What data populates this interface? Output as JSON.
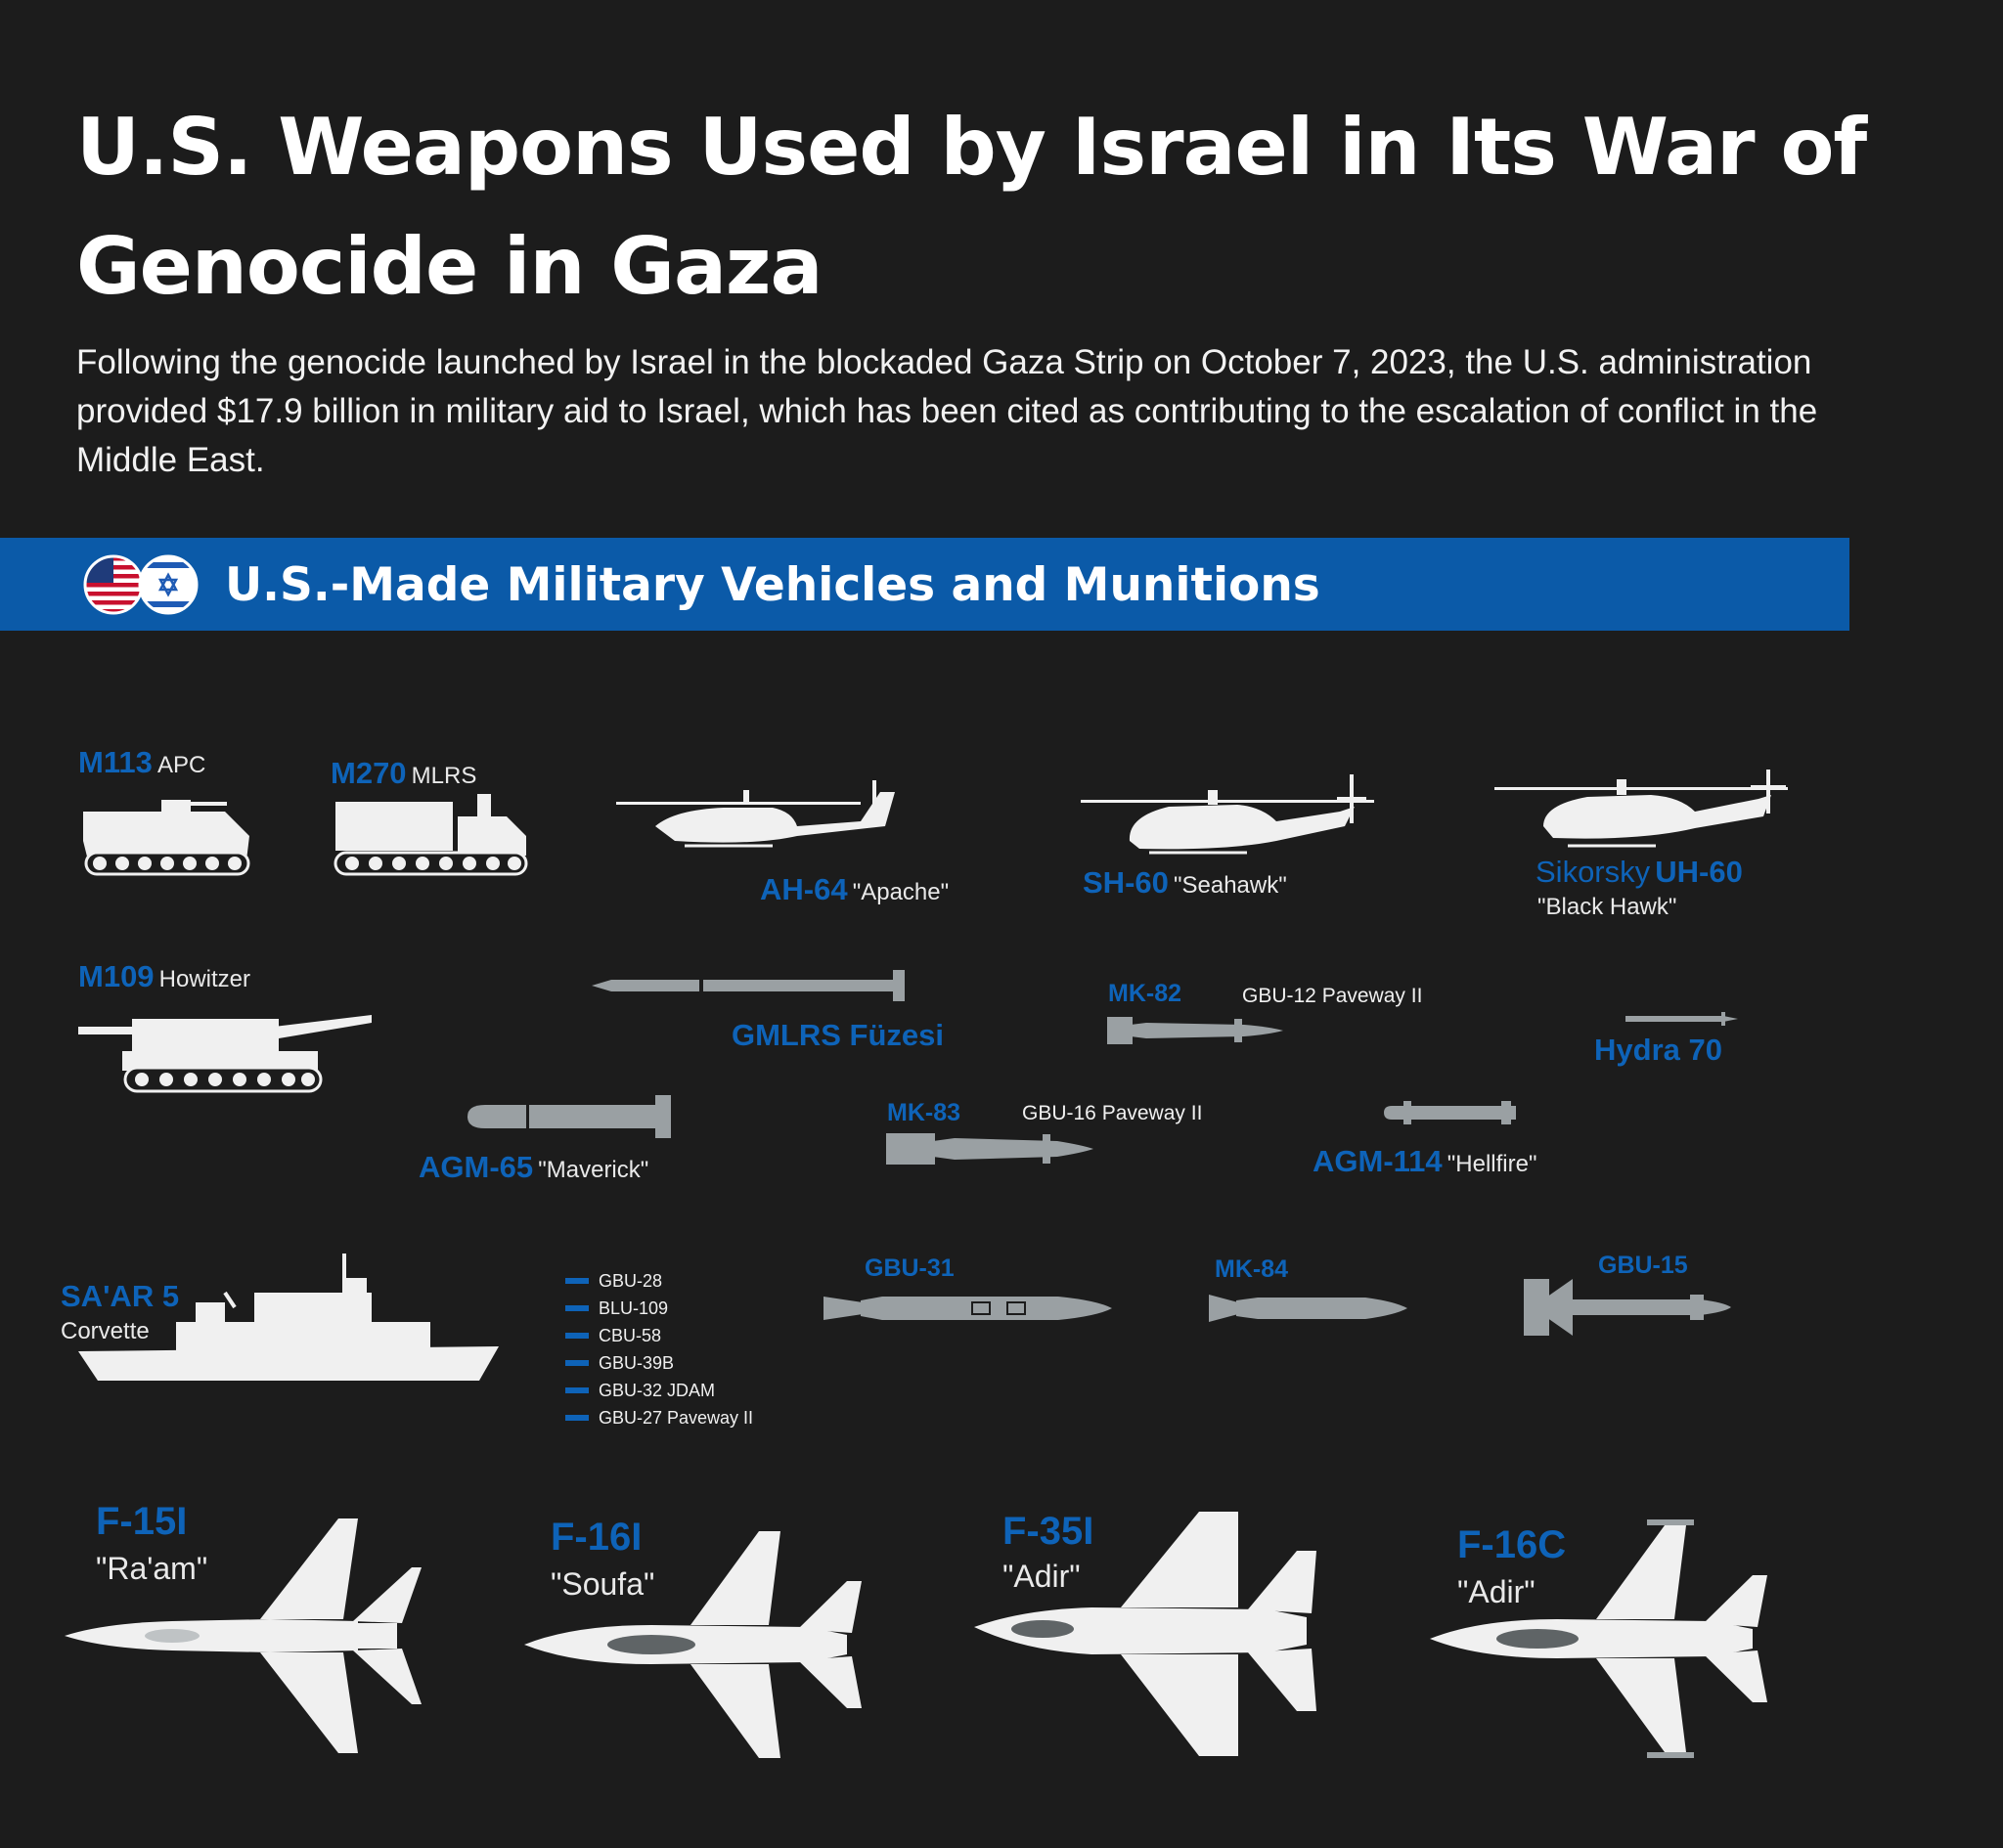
{
  "title": "U.S. Weapons Used by Israel in Its War of Genocide in Gaza",
  "intro": "Following the genocide launched by Israel in the blockaded Gaza Strip on October 7, 2023, the U.S. administration provided $17.9 billion in military aid to Israel, which has been cited as contributing to the escalation of conflict in the Middle East.",
  "section": {
    "title": "U.S.-Made Military Vehicles and Munitions",
    "flags": [
      "us-flag-icon",
      "israel-flag-icon"
    ]
  },
  "colors": {
    "background": "#1c1c1c",
    "banner": "#0b5aa8",
    "accent_blue": "#0e63b8",
    "silhouette_white": "#f0f0f0",
    "munition_gray": "#9aa0a3"
  },
  "vehicles": {
    "m113": {
      "name": "M113",
      "type": "APC"
    },
    "m270": {
      "name": "M270",
      "type": "MLRS"
    },
    "ah64": {
      "name": "AH-64",
      "nickname": "\"Apache\""
    },
    "sh60": {
      "name": "SH-60",
      "nickname": "\"Seahawk\""
    },
    "uh60": {
      "maker": "Sikorsky",
      "name": "UH-60",
      "nickname": "\"Black Hawk\""
    },
    "m109": {
      "name": "M109",
      "type": "Howitzer"
    },
    "saar5": {
      "name": "SA'AR 5",
      "type": "Corvette"
    }
  },
  "munitions": {
    "gmlrs": {
      "name": "GMLRS Füzesi"
    },
    "mk82": {
      "name": "MK-82",
      "variant": "GBU-12  Paveway II"
    },
    "hydra": {
      "name": "Hydra 70"
    },
    "agm65": {
      "name": "AGM-65",
      "nickname": "\"Maverick\""
    },
    "mk83": {
      "name": "MK-83",
      "variant": "GBU-16 Paveway II"
    },
    "agm114": {
      "name": "AGM-114",
      "nickname": "\"Hellfire\""
    },
    "gbu31": {
      "name": "GBU-31"
    },
    "mk84": {
      "name": "MK-84"
    },
    "gbu15": {
      "name": "GBU-15"
    },
    "list": [
      "GBU-28",
      "BLU-109",
      "CBU-58",
      "GBU-39B",
      "GBU-32 JDAM",
      "GBU-27 Paveway II"
    ]
  },
  "aircraft": [
    {
      "name": "F-15I",
      "nickname": "\"Ra'am\""
    },
    {
      "name": "F-16I",
      "nickname": "\"Soufa\""
    },
    {
      "name": "F-35I",
      "nickname": "\"Adir\""
    },
    {
      "name": "F-16C",
      "nickname": "\"Adir\""
    }
  ]
}
